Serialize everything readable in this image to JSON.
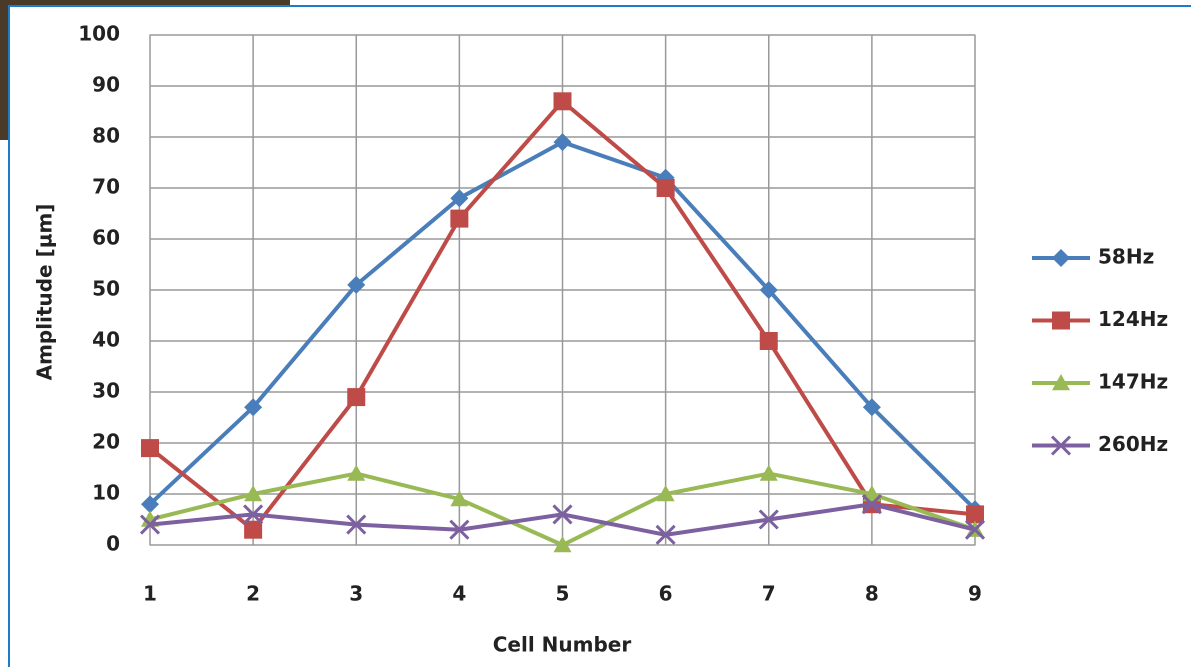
{
  "chart_data": {
    "type": "line",
    "x_label": "Cell Number",
    "y_label": "Amplitude [µm]",
    "x": [
      1,
      2,
      3,
      4,
      5,
      6,
      7,
      8,
      9
    ],
    "xlim": [
      1,
      9
    ],
    "xticks": [
      1,
      2,
      3,
      4,
      5,
      6,
      7,
      8,
      9
    ],
    "ylim": [
      0,
      100
    ],
    "yticks": [
      0,
      10,
      20,
      30,
      40,
      50,
      60,
      70,
      80,
      90,
      100
    ],
    "grid": true,
    "legend": "right",
    "series": [
      {
        "name": "58Hz",
        "color": "#4a7ebb",
        "marker": "diamond",
        "values": [
          8,
          27,
          51,
          68,
          79,
          72,
          50,
          27,
          7
        ]
      },
      {
        "name": "124Hz",
        "color": "#be4b48",
        "marker": "square",
        "values": [
          19,
          3,
          29,
          64,
          87,
          70,
          40,
          8,
          6
        ]
      },
      {
        "name": "147Hz",
        "color": "#98b954",
        "marker": "triangle",
        "values": [
          5,
          10,
          14,
          9,
          0,
          10,
          14,
          10,
          3
        ]
      },
      {
        "name": "260Hz",
        "color": "#7d60a0",
        "marker": "x",
        "values": [
          4,
          6,
          4,
          3,
          6,
          2,
          5,
          8,
          3
        ]
      }
    ]
  }
}
